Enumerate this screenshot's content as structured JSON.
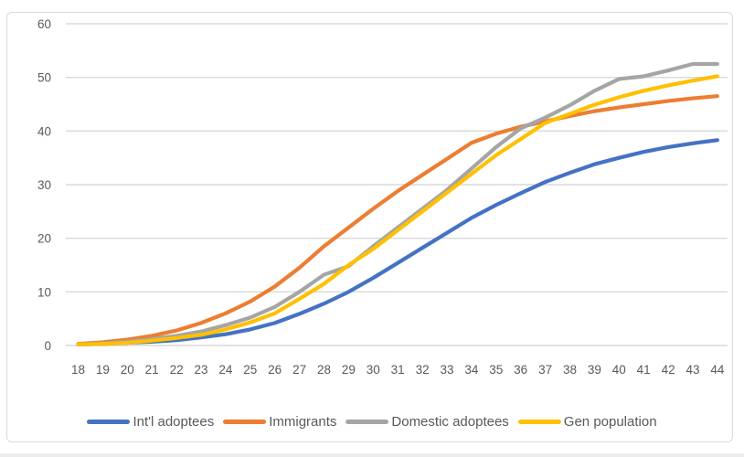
{
  "chart_data": {
    "type": "line",
    "title": "",
    "xlabel": "",
    "ylabel": "",
    "x": [
      18,
      19,
      20,
      21,
      22,
      23,
      24,
      25,
      26,
      27,
      28,
      29,
      30,
      31,
      32,
      33,
      34,
      35,
      36,
      37,
      38,
      39,
      40,
      41,
      42,
      43,
      44
    ],
    "yticks": [
      0,
      10,
      20,
      30,
      40,
      50,
      60
    ],
    "ylim": [
      0,
      60
    ],
    "grid": true,
    "legend_position": "bottom",
    "series": [
      {
        "name": "Int'l adoptees",
        "color": "#4472C4",
        "values": [
          0.2,
          0.3,
          0.5,
          0.7,
          1.0,
          1.5,
          2.1,
          3.0,
          4.2,
          5.9,
          7.8,
          10.0,
          12.6,
          15.4,
          18.2,
          21.0,
          23.8,
          26.2,
          28.4,
          30.5,
          32.2,
          33.8,
          35.0,
          36.1,
          37.0,
          37.7,
          38.3
        ]
      },
      {
        "name": "Immigrants",
        "color": "#ED7D31",
        "values": [
          0.3,
          0.6,
          1.1,
          1.8,
          2.8,
          4.2,
          6.0,
          8.2,
          11.0,
          14.5,
          18.5,
          22.0,
          25.5,
          28.8,
          31.8,
          34.8,
          37.8,
          39.5,
          40.8,
          41.8,
          42.8,
          43.7,
          44.4,
          45.0,
          45.6,
          46.1,
          46.5
        ]
      },
      {
        "name": "Domestic adoptees",
        "color": "#A5A5A5",
        "values": [
          0.2,
          0.4,
          0.7,
          1.2,
          1.8,
          2.6,
          3.8,
          5.2,
          7.2,
          10.0,
          13.2,
          14.8,
          18.5,
          22.0,
          25.5,
          29.0,
          33.0,
          37.0,
          40.5,
          42.5,
          44.8,
          47.5,
          49.7,
          50.2,
          51.3,
          52.5,
          52.5
        ]
      },
      {
        "name": "Gen population",
        "color": "#FFC000",
        "values": [
          0.2,
          0.3,
          0.5,
          0.9,
          1.4,
          2.0,
          3.0,
          4.3,
          6.0,
          8.7,
          11.5,
          15.0,
          18.0,
          21.5,
          25.0,
          28.5,
          32.0,
          35.5,
          38.5,
          41.5,
          43.2,
          44.9,
          46.3,
          47.5,
          48.5,
          49.4,
          50.2
        ]
      }
    ],
    "colors": {
      "axis_text": "#595959",
      "gridline": "#d9d9d9",
      "frame_border": "#d9d9d9",
      "background": "#ffffff"
    }
  }
}
